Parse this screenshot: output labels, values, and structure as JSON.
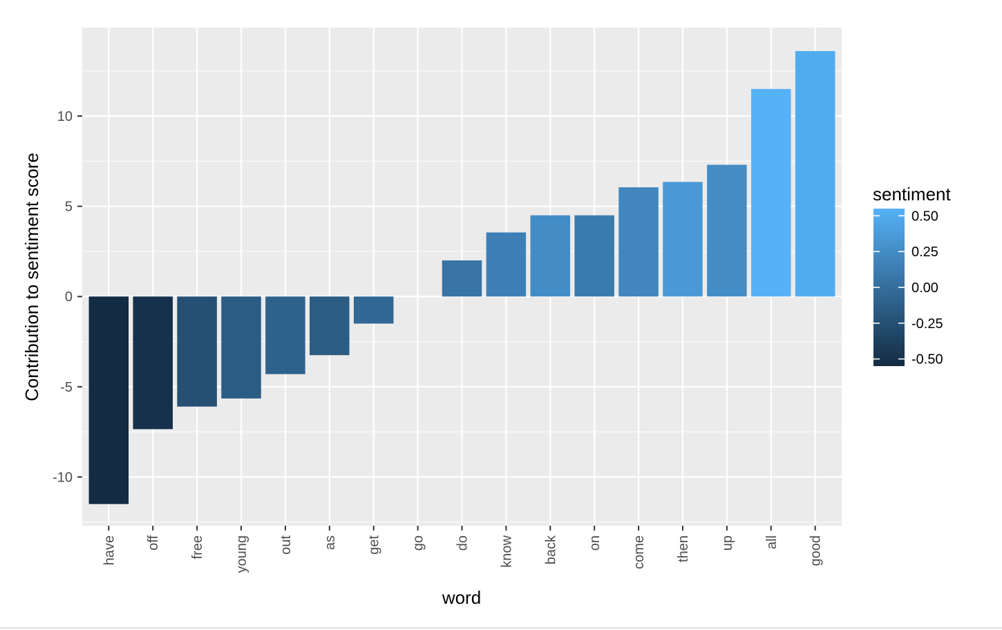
{
  "chart_data": {
    "type": "bar",
    "xlabel": "word",
    "ylabel": "Contribution to sentiment score",
    "categories": [
      "have",
      "off",
      "free",
      "young",
      "out",
      "as",
      "get",
      "go",
      "do",
      "know",
      "back",
      "on",
      "come",
      "then",
      "up",
      "all",
      "good"
    ],
    "values": [
      -11.5,
      -7.35,
      -6.1,
      -5.65,
      -4.3,
      -3.25,
      -1.5,
      0,
      2.0,
      3.55,
      4.5,
      4.5,
      6.05,
      6.35,
      7.3,
      11.5,
      13.6
    ],
    "sentiment": [
      -0.55,
      -0.5,
      -0.25,
      -0.15,
      -0.1,
      -0.15,
      -0.05,
      0,
      0.05,
      0.15,
      0.25,
      0.1,
      0.2,
      0.35,
      0.25,
      0.55,
      0.5
    ],
    "ylim": [
      -12.7,
      14.9
    ],
    "yticks": [
      -10,
      -5,
      0,
      5,
      10
    ],
    "ytick_labels": [
      "-10",
      "-5",
      "0",
      "5",
      "10"
    ],
    "grid": true,
    "legend": {
      "title": "sentiment",
      "placement": "right",
      "range": [
        -0.55,
        0.55
      ],
      "breaks": [
        0.5,
        0.25,
        0.0,
        -0.25,
        -0.5
      ],
      "labels": [
        "0.50",
        "0.25",
        "0.00",
        "-0.25",
        "-0.50"
      ],
      "colors": {
        "low": "#132B43",
        "high": "#56B1F7"
      }
    },
    "colors": {
      "panel": "#EBEBEB",
      "grid": "#FFFFFF",
      "tick": "#333333",
      "text": "#4D4D4D"
    }
  }
}
